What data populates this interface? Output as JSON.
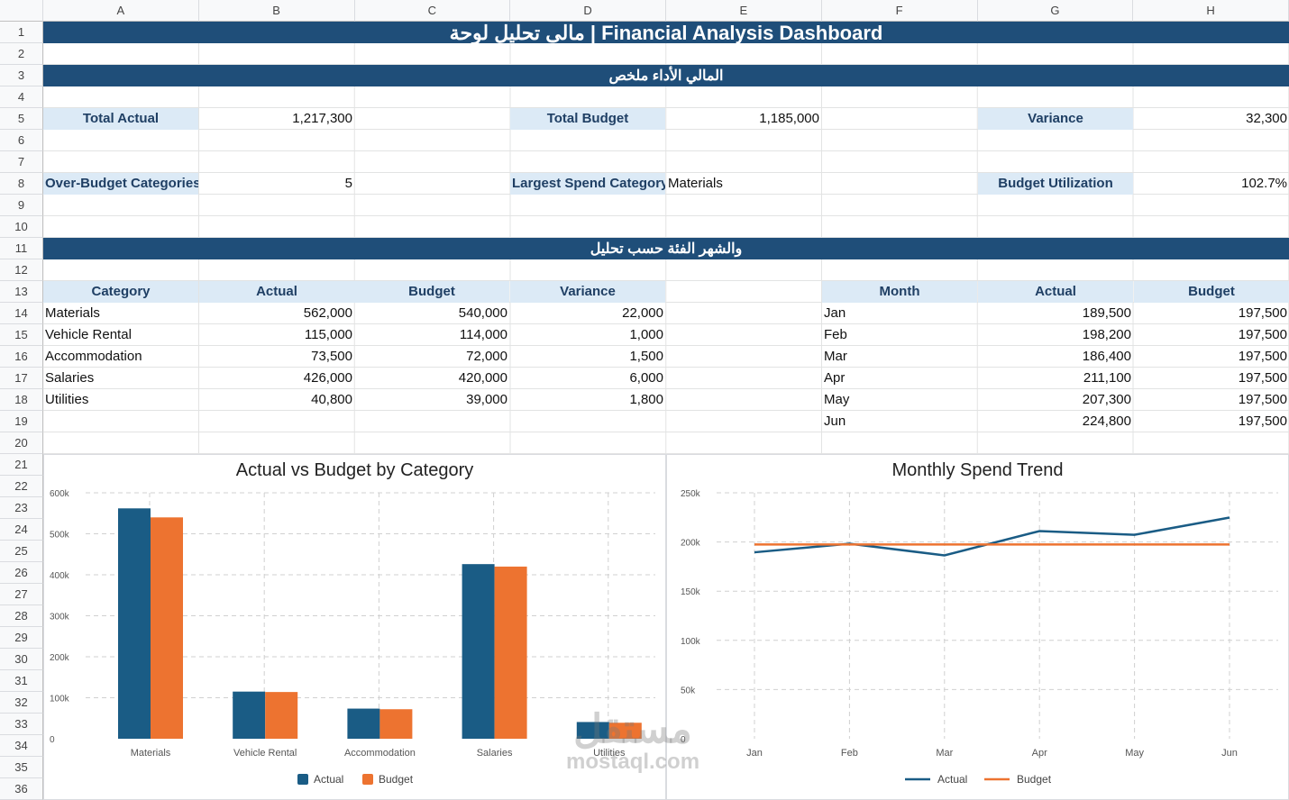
{
  "columns": [
    "A",
    "B",
    "C",
    "D",
    "E",
    "F",
    "G",
    "H"
  ],
  "rows": [
    "1",
    "2",
    "3",
    "4",
    "5",
    "6",
    "7",
    "8",
    "9",
    "10",
    "11",
    "12",
    "13",
    "14",
    "15",
    "16",
    "17",
    "18",
    "19",
    "20",
    "21",
    "22",
    "23",
    "24",
    "25",
    "26",
    "27",
    "28",
    "29",
    "30",
    "31",
    "32",
    "33",
    "34",
    "35",
    "36"
  ],
  "title": "مالى تحليل لوحة | Financial Analysis Dashboard",
  "section1": "المالي الأداء ملخص",
  "section2": "والشهر الفئة حسب تحليل",
  "kpi": {
    "total_actual_label": "Total Actual",
    "total_actual": "1,217,300",
    "total_budget_label": "Total Budget",
    "total_budget": "1,185,000",
    "variance_label": "Variance",
    "variance": "32,300",
    "over_budget_label": "Over-Budget Categories",
    "over_budget": "5",
    "largest_label": "Largest Spend Category",
    "largest": "Materials",
    "utilization_label": "Budget Utilization",
    "utilization": "102.7%"
  },
  "category_table": {
    "headers": [
      "Category",
      "Actual",
      "Budget",
      "Variance"
    ],
    "rows": [
      [
        "Materials",
        "562,000",
        "540,000",
        "22,000"
      ],
      [
        "Vehicle Rental",
        "115,000",
        "114,000",
        "1,000"
      ],
      [
        "Accommodation",
        "73,500",
        "72,000",
        "1,500"
      ],
      [
        "Salaries",
        "426,000",
        "420,000",
        "6,000"
      ],
      [
        "Utilities",
        "40,800",
        "39,000",
        "1,800"
      ]
    ]
  },
  "month_table": {
    "headers": [
      "Month",
      "Actual",
      "Budget"
    ],
    "rows": [
      [
        "Jan",
        "189,500",
        "197,500"
      ],
      [
        "Feb",
        "198,200",
        "197,500"
      ],
      [
        "Mar",
        "186,400",
        "197,500"
      ],
      [
        "Apr",
        "211,100",
        "197,500"
      ],
      [
        "May",
        "207,300",
        "197,500"
      ],
      [
        "Jun",
        "224,800",
        "197,500"
      ]
    ]
  },
  "colors": {
    "actual": "#1a5c85",
    "budget": "#ed7330",
    "band": "#1f4e79",
    "label_bg": "#dceaf6"
  },
  "chart_data": [
    {
      "type": "bar",
      "title": "Actual vs Budget by Category",
      "categories": [
        "Materials",
        "Vehicle Rental",
        "Accommodation",
        "Salaries",
        "Utilities"
      ],
      "series": [
        {
          "name": "Actual",
          "values": [
            562000,
            115000,
            73500,
            426000,
            40800
          ]
        },
        {
          "name": "Budget",
          "values": [
            540000,
            114000,
            72000,
            420000,
            39000
          ]
        }
      ],
      "ylim": [
        0,
        600000
      ],
      "yticks": [
        "0",
        "100k",
        "200k",
        "300k",
        "400k",
        "500k",
        "600k"
      ],
      "grid": true,
      "legend": "bottom"
    },
    {
      "type": "line",
      "title": "Monthly Spend Trend",
      "categories": [
        "Jan",
        "Feb",
        "Mar",
        "Apr",
        "May",
        "Jun"
      ],
      "series": [
        {
          "name": "Actual",
          "values": [
            189500,
            198200,
            186400,
            211100,
            207300,
            224800
          ]
        },
        {
          "name": "Budget",
          "values": [
            197500,
            197500,
            197500,
            197500,
            197500,
            197500
          ]
        }
      ],
      "ylim": [
        0,
        250000
      ],
      "yticks": [
        "0",
        "50k",
        "100k",
        "150k",
        "200k",
        "250k"
      ],
      "grid": true,
      "legend": "bottom"
    }
  ],
  "watermark": {
    "arabic": "مستقل",
    "latin": "mostaql.com"
  }
}
